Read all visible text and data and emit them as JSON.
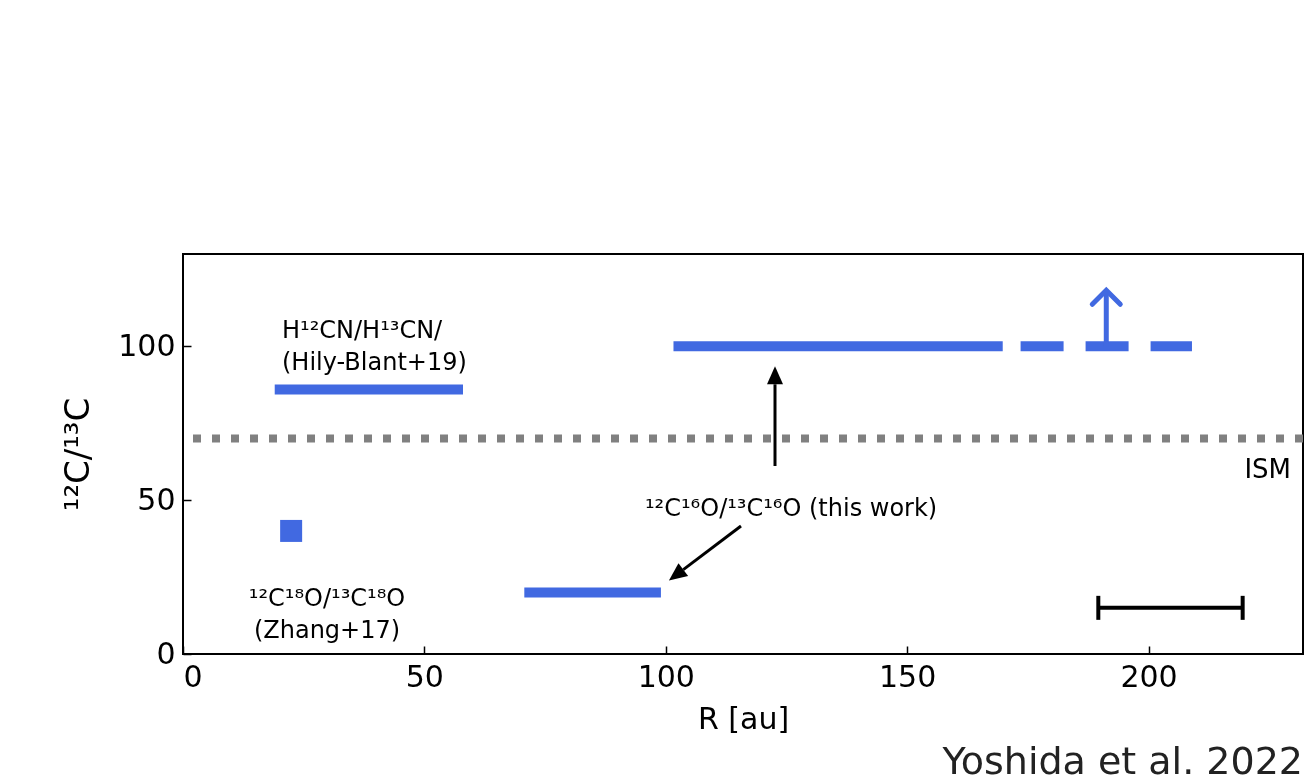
{
  "chart_data": {
    "type": "line",
    "xlabel": "R [au]",
    "ylabel": "¹²C/¹³C",
    "xlim": [
      0,
      232
    ],
    "ylim": [
      0,
      130
    ],
    "xticks": [
      0,
      50,
      100,
      150,
      200
    ],
    "yticks": [
      0,
      50,
      100
    ],
    "series": [
      {
        "name": "H¹²CN/H¹³CN/\n (Hily-Blant+19)",
        "color": "#4169e1",
        "x": [
          19,
          58
        ],
        "values": [
          86,
          86
        ]
      },
      {
        "name": "¹²C¹⁸O/¹³C¹⁸O\n(Zhang+17)",
        "type": "scatter",
        "marker": "square",
        "color": "#4169e1",
        "x": [
          22.4
        ],
        "values": [
          40
        ]
      },
      {
        "color": "#4169e1",
        "x": [
          70.7,
          99,
          100,
          101.6,
          169.8
        ],
        "values": [
          20,
          20,
          null,
          100,
          100
        ]
      },
      {
        "line_style": "dashed",
        "color": "#4169e1",
        "x": [
          173.5,
          209
        ],
        "values": [
          100,
          100
        ]
      },
      {
        "color": "#000000",
        "x": [
          189.6,
          219.5
        ],
        "values": [
          15,
          15
        ]
      }
    ],
    "ref_lines": [
      {
        "axis": "y",
        "value": 70,
        "label": "ISM",
        "color": "#808080",
        "line_style": "dotted"
      }
    ],
    "annotations": [
      "¹²C¹⁶O/¹³C¹⁶O (this work)",
      "Yoshida et al. 2022"
    ]
  }
}
